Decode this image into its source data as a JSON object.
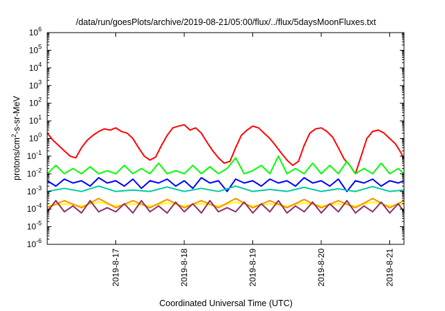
{
  "chart_data": {
    "type": "line",
    "title": "/data/run/goesPlots/archive/2019-08-21/05:00/flux/../flux/5daysMoonFluxes.txt",
    "xlabel": "Coordinated Universal Time (UTC)",
    "ylabel_main": "protons/cm",
    "ylabel_sup": "2",
    "ylabel_rest": "-s-sr-MeV",
    "y_scale": "log",
    "ylim": [
      1e-06,
      1000000.0
    ],
    "y_ticks": [
      {
        "base": "10",
        "exp": "-6",
        "value": 1e-06
      },
      {
        "base": "10",
        "exp": "-5",
        "value": 1e-05
      },
      {
        "base": "10",
        "exp": "-4",
        "value": 0.0001
      },
      {
        "base": "10",
        "exp": "-3",
        "value": 0.001
      },
      {
        "base": "10",
        "exp": "-2",
        "value": 0.01
      },
      {
        "base": "10",
        "exp": "-1",
        "value": 0.1
      },
      {
        "base": "10",
        "exp": "0",
        "value": 1
      },
      {
        "base": "10",
        "exp": "1",
        "value": 10
      },
      {
        "base": "10",
        "exp": "2",
        "value": 100
      },
      {
        "base": "10",
        "exp": "3",
        "value": 1000
      },
      {
        "base": "10",
        "exp": "4",
        "value": 10000
      },
      {
        "base": "10",
        "exp": "5",
        "value": 100000
      },
      {
        "base": "10",
        "exp": "6",
        "value": 1000000
      }
    ],
    "xlim": [
      "2019-08-16 00:00",
      "2019-08-21 05:00"
    ],
    "x_ticks": [
      {
        "label": "2019-8-17",
        "date": "2019-08-17 00:00"
      },
      {
        "label": "2019-8-18",
        "date": "2019-08-18 00:00"
      },
      {
        "label": "2019-8-19",
        "date": "2019-08-19 00:00"
      },
      {
        "label": "2019-8-20",
        "date": "2019-08-20 00:00"
      },
      {
        "label": "2019-8-21",
        "date": "2019-08-21 00:00"
      }
    ],
    "grid": false,
    "legend": "none",
    "series": [
      {
        "color": "#ff0000",
        "x": [
          "2019-08-16 00:00",
          "2019-08-16 02:00",
          "2019-08-16 04:00",
          "2019-08-16 06:00",
          "2019-08-16 08:00",
          "2019-08-16 10:00",
          "2019-08-16 12:00",
          "2019-08-16 14:00",
          "2019-08-16 16:00",
          "2019-08-16 18:00",
          "2019-08-16 20:00",
          "2019-08-16 22:00",
          "2019-08-17 00:00",
          "2019-08-17 02:00",
          "2019-08-17 04:00",
          "2019-08-17 06:00",
          "2019-08-17 08:00",
          "2019-08-17 10:00",
          "2019-08-17 12:00",
          "2019-08-17 14:00",
          "2019-08-17 16:00",
          "2019-08-17 18:00",
          "2019-08-17 20:00",
          "2019-08-17 22:00",
          "2019-08-18 00:00",
          "2019-08-18 02:00",
          "2019-08-18 04:00",
          "2019-08-18 06:00",
          "2019-08-18 08:00",
          "2019-08-18 10:00",
          "2019-08-18 12:00",
          "2019-08-18 14:00",
          "2019-08-18 16:00",
          "2019-08-18 18:00",
          "2019-08-18 20:00",
          "2019-08-18 22:00",
          "2019-08-19 00:00",
          "2019-08-19 02:00",
          "2019-08-19 04:00",
          "2019-08-19 06:00",
          "2019-08-19 08:00",
          "2019-08-19 10:00",
          "2019-08-19 12:00",
          "2019-08-19 14:00",
          "2019-08-19 16:00",
          "2019-08-19 18:00",
          "2019-08-19 20:00",
          "2019-08-19 22:00",
          "2019-08-20 00:00",
          "2019-08-20 02:00",
          "2019-08-20 04:00",
          "2019-08-20 06:00",
          "2019-08-20 08:00",
          "2019-08-20 10:00",
          "2019-08-20 12:00",
          "2019-08-20 14:00",
          "2019-08-20 16:00",
          "2019-08-20 18:00",
          "2019-08-20 20:00",
          "2019-08-20 22:00",
          "2019-08-21 00:00",
          "2019-08-21 02:00",
          "2019-08-21 04:00",
          "2019-08-21 05:00"
        ],
        "y": [
          2.0,
          0.8,
          0.4,
          0.2,
          0.1,
          0.08,
          0.3,
          0.8,
          1.5,
          2.5,
          3.5,
          3.0,
          4.0,
          2.5,
          2.0,
          1.0,
          0.3,
          0.1,
          0.06,
          0.09,
          0.4,
          1.5,
          4.0,
          5.0,
          6.0,
          3.0,
          4.0,
          2.0,
          0.6,
          0.2,
          0.08,
          0.04,
          0.05,
          0.3,
          1.5,
          3.0,
          5.0,
          4.0,
          2.0,
          1.0,
          0.4,
          0.15,
          0.06,
          0.03,
          0.05,
          0.4,
          2.0,
          3.5,
          4.0,
          2.5,
          1.2,
          0.3,
          0.07,
          0.03,
          0.01,
          0.1,
          1.0,
          2.5,
          3.0,
          2.0,
          1.0,
          0.5,
          0.15,
          0.07
        ]
      },
      {
        "color": "#00ff00",
        "x": [
          "2019-08-16 00:00",
          "2019-08-16 03:00",
          "2019-08-16 06:00",
          "2019-08-16 09:00",
          "2019-08-16 12:00",
          "2019-08-16 15:00",
          "2019-08-16 18:00",
          "2019-08-16 21:00",
          "2019-08-17 00:00",
          "2019-08-17 03:00",
          "2019-08-17 06:00",
          "2019-08-17 09:00",
          "2019-08-17 12:00",
          "2019-08-17 15:00",
          "2019-08-17 18:00",
          "2019-08-17 21:00",
          "2019-08-18 00:00",
          "2019-08-18 03:00",
          "2019-08-18 06:00",
          "2019-08-18 09:00",
          "2019-08-18 12:00",
          "2019-08-18 15:00",
          "2019-08-18 18:00",
          "2019-08-18 21:00",
          "2019-08-19 00:00",
          "2019-08-19 03:00",
          "2019-08-19 06:00",
          "2019-08-19 09:00",
          "2019-08-19 12:00",
          "2019-08-19 15:00",
          "2019-08-19 18:00",
          "2019-08-19 21:00",
          "2019-08-20 00:00",
          "2019-08-20 03:00",
          "2019-08-20 06:00",
          "2019-08-20 09:00",
          "2019-08-20 12:00",
          "2019-08-20 15:00",
          "2019-08-20 18:00",
          "2019-08-20 21:00",
          "2019-08-21 00:00",
          "2019-08-21 03:00",
          "2019-08-21 05:00"
        ],
        "y": [
          0.01,
          0.03,
          0.01,
          0.02,
          0.01,
          0.025,
          0.01,
          0.015,
          0.01,
          0.03,
          0.01,
          0.02,
          0.01,
          0.04,
          0.01,
          0.015,
          0.01,
          0.03,
          0.01,
          0.025,
          0.01,
          0.02,
          0.08,
          0.01,
          0.015,
          0.03,
          0.01,
          0.1,
          0.01,
          0.02,
          0.01,
          0.04,
          0.01,
          0.03,
          0.01,
          0.05,
          0.01,
          0.02,
          0.01,
          0.04,
          0.01,
          0.02,
          0.01
        ]
      },
      {
        "color": "#0000ff",
        "x": [
          "2019-08-16 00:00",
          "2019-08-16 03:00",
          "2019-08-16 06:00",
          "2019-08-16 09:00",
          "2019-08-16 12:00",
          "2019-08-16 15:00",
          "2019-08-16 18:00",
          "2019-08-16 21:00",
          "2019-08-17 00:00",
          "2019-08-17 03:00",
          "2019-08-17 06:00",
          "2019-08-17 09:00",
          "2019-08-17 12:00",
          "2019-08-17 15:00",
          "2019-08-17 18:00",
          "2019-08-17 21:00",
          "2019-08-18 00:00",
          "2019-08-18 03:00",
          "2019-08-18 06:00",
          "2019-08-18 09:00",
          "2019-08-18 12:00",
          "2019-08-18 15:00",
          "2019-08-18 18:00",
          "2019-08-18 21:00",
          "2019-08-19 00:00",
          "2019-08-19 03:00",
          "2019-08-19 06:00",
          "2019-08-19 09:00",
          "2019-08-19 12:00",
          "2019-08-19 15:00",
          "2019-08-19 18:00",
          "2019-08-19 21:00",
          "2019-08-20 00:00",
          "2019-08-20 03:00",
          "2019-08-20 06:00",
          "2019-08-20 09:00",
          "2019-08-20 12:00",
          "2019-08-20 15:00",
          "2019-08-20 18:00",
          "2019-08-20 21:00",
          "2019-08-21 00:00",
          "2019-08-21 03:00",
          "2019-08-21 05:00"
        ],
        "y": [
          0.004,
          0.002,
          0.005,
          0.003,
          0.004,
          0.002,
          0.006,
          0.003,
          0.004,
          0.002,
          0.005,
          0.0015,
          0.004,
          0.003,
          0.005,
          0.002,
          0.004,
          0.0015,
          0.006,
          0.003,
          0.004,
          0.001,
          0.005,
          0.003,
          0.004,
          0.002,
          0.005,
          0.003,
          0.004,
          0.002,
          0.006,
          0.003,
          0.004,
          0.002,
          0.005,
          0.001,
          0.004,
          0.003,
          0.005,
          0.002,
          0.004,
          0.003,
          0.004
        ]
      },
      {
        "color": "#00c8a0",
        "x": [
          "2019-08-16 00:00",
          "2019-08-16 06:00",
          "2019-08-16 12:00",
          "2019-08-16 18:00",
          "2019-08-17 00:00",
          "2019-08-17 06:00",
          "2019-08-17 12:00",
          "2019-08-17 18:00",
          "2019-08-18 00:00",
          "2019-08-18 06:00",
          "2019-08-18 12:00",
          "2019-08-18 18:00",
          "2019-08-19 00:00",
          "2019-08-19 06:00",
          "2019-08-19 12:00",
          "2019-08-19 18:00",
          "2019-08-20 00:00",
          "2019-08-20 06:00",
          "2019-08-20 12:00",
          "2019-08-20 18:00",
          "2019-08-21 00:00",
          "2019-08-21 05:00"
        ],
        "y": [
          0.001,
          0.0015,
          0.001,
          0.002,
          0.001,
          0.0012,
          0.001,
          0.0018,
          0.001,
          0.0015,
          0.001,
          0.002,
          0.001,
          0.0013,
          0.001,
          0.0017,
          0.001,
          0.0014,
          0.001,
          0.0019,
          0.001,
          0.0012
        ]
      },
      {
        "color": "#ffff00",
        "x": [
          "2019-08-16 00:00",
          "2019-08-16 06:00",
          "2019-08-16 12:00",
          "2019-08-16 18:00",
          "2019-08-17 00:00",
          "2019-08-17 06:00",
          "2019-08-17 12:00",
          "2019-08-17 18:00",
          "2019-08-18 00:00",
          "2019-08-18 06:00",
          "2019-08-18 12:00",
          "2019-08-18 18:00",
          "2019-08-19 00:00",
          "2019-08-19 06:00",
          "2019-08-19 12:00",
          "2019-08-19 18:00",
          "2019-08-20 00:00",
          "2019-08-20 06:00",
          "2019-08-20 12:00",
          "2019-08-20 18:00",
          "2019-08-21 00:00",
          "2019-08-21 05:00"
        ],
        "y": [
          0.00015,
          0.0002,
          0.00015,
          0.00025,
          0.00015,
          0.0002,
          0.00015,
          0.00022,
          0.00015,
          0.0002,
          0.00015,
          0.00025,
          0.00015,
          0.0002,
          0.00015,
          0.00022,
          0.00015,
          0.0002,
          0.00015,
          0.00025,
          0.00015,
          0.0002
        ]
      },
      {
        "color": "#ff8c00",
        "x": [
          "2019-08-16 00:00",
          "2019-08-16 06:00",
          "2019-08-16 12:00",
          "2019-08-16 18:00",
          "2019-08-17 00:00",
          "2019-08-17 06:00",
          "2019-08-17 12:00",
          "2019-08-17 18:00",
          "2019-08-18 00:00",
          "2019-08-18 06:00",
          "2019-08-18 12:00",
          "2019-08-18 18:00",
          "2019-08-19 00:00",
          "2019-08-19 06:00",
          "2019-08-19 12:00",
          "2019-08-19 18:00",
          "2019-08-20 00:00",
          "2019-08-20 06:00",
          "2019-08-20 12:00",
          "2019-08-20 18:00",
          "2019-08-21 00:00",
          "2019-08-21 05:00"
        ],
        "y": [
          0.00012,
          0.0003,
          0.00012,
          0.0004,
          0.00012,
          0.0003,
          0.00012,
          0.00035,
          0.00012,
          0.0003,
          0.00012,
          0.0004,
          0.00012,
          0.0003,
          0.00012,
          0.00035,
          0.00012,
          0.0003,
          0.00012,
          0.0004,
          0.00012,
          0.0003
        ]
      },
      {
        "color": "#8b2e6b",
        "x": [
          "2019-08-16 00:00",
          "2019-08-16 03:00",
          "2019-08-16 06:00",
          "2019-08-16 09:00",
          "2019-08-16 12:00",
          "2019-08-16 15:00",
          "2019-08-16 18:00",
          "2019-08-16 21:00",
          "2019-08-17 00:00",
          "2019-08-17 03:00",
          "2019-08-17 06:00",
          "2019-08-17 09:00",
          "2019-08-17 12:00",
          "2019-08-17 15:00",
          "2019-08-17 18:00",
          "2019-08-17 21:00",
          "2019-08-18 00:00",
          "2019-08-18 03:00",
          "2019-08-18 06:00",
          "2019-08-18 09:00",
          "2019-08-18 12:00",
          "2019-08-18 15:00",
          "2019-08-18 18:00",
          "2019-08-18 21:00",
          "2019-08-19 00:00",
          "2019-08-19 03:00",
          "2019-08-19 06:00",
          "2019-08-19 09:00",
          "2019-08-19 12:00",
          "2019-08-19 15:00",
          "2019-08-19 18:00",
          "2019-08-19 21:00",
          "2019-08-20 00:00",
          "2019-08-20 03:00",
          "2019-08-20 06:00",
          "2019-08-20 09:00",
          "2019-08-20 12:00",
          "2019-08-20 15:00",
          "2019-08-20 18:00",
          "2019-08-20 21:00",
          "2019-08-21 00:00",
          "2019-08-21 03:00",
          "2019-08-21 05:00"
        ],
        "y": [
          7e-05,
          0.0003,
          7e-05,
          0.00015,
          6e-05,
          0.0003,
          7e-05,
          0.00012,
          7e-05,
          0.0002,
          6e-05,
          0.0003,
          7e-05,
          0.00015,
          6e-05,
          0.00025,
          7e-05,
          0.0002,
          6e-05,
          0.0003,
          7e-05,
          0.00012,
          7e-05,
          0.00025,
          6e-05,
          0.0002,
          7e-05,
          0.0003,
          6e-05,
          0.00015,
          7e-05,
          0.00025,
          6e-05,
          0.0002,
          7e-05,
          0.0003,
          6e-05,
          0.00015,
          7e-05,
          0.00025,
          6e-05,
          0.0002,
          7e-05
        ]
      }
    ]
  }
}
